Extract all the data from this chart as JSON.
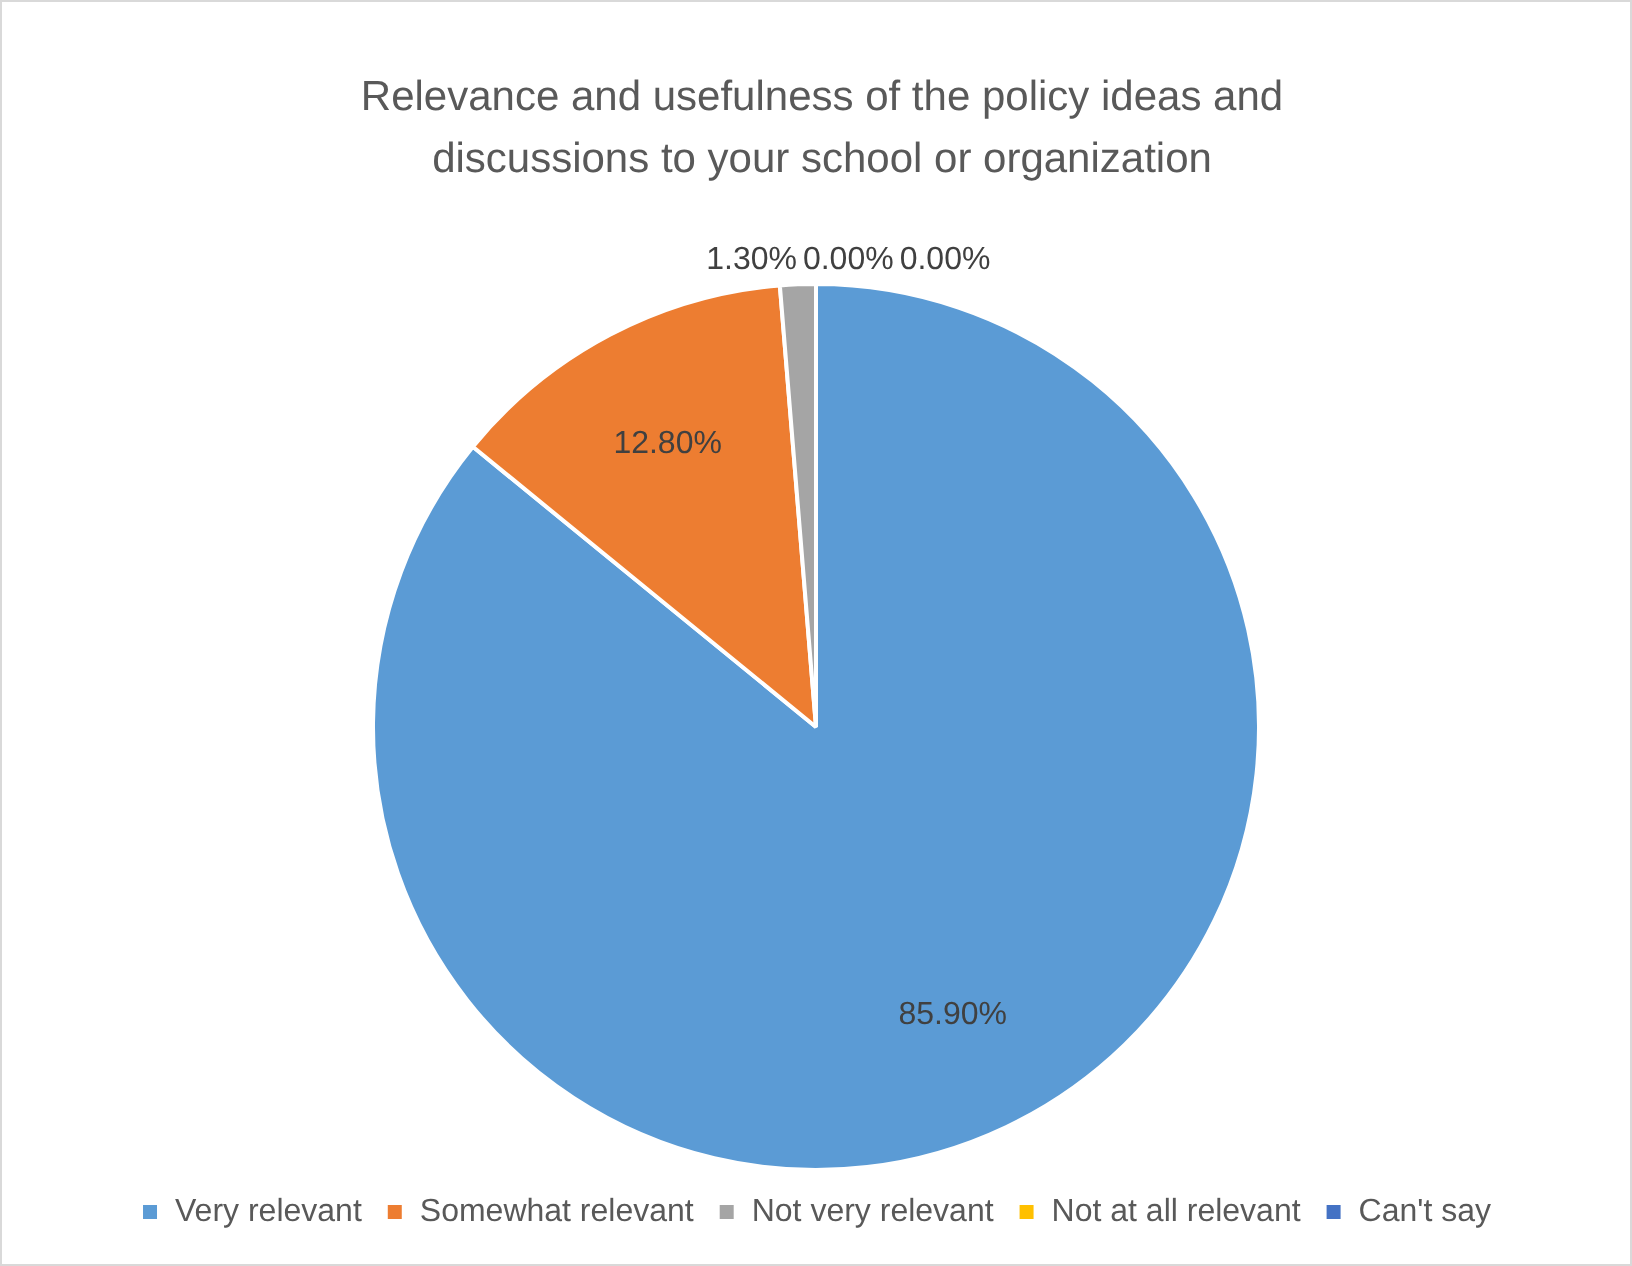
{
  "chart_data": {
    "type": "pie",
    "title": "Relevance and usefulness of the policy ideas and discussions to your school or organization",
    "categories": [
      "Very relevant",
      "Somewhat relevant",
      "Not very relevant",
      "Not at all relevant",
      "Can't say"
    ],
    "values": [
      85.9,
      12.8,
      1.3,
      0,
      0
    ],
    "colors": [
      "#5b9bd5",
      "#ed7d31",
      "#a5a5a5",
      "#ffc000",
      "#4472c4"
    ],
    "value_labels": [
      "85.90%",
      "12.80%",
      "1.30%",
      "0.00%",
      "0.00%"
    ],
    "legend": "bottom"
  }
}
